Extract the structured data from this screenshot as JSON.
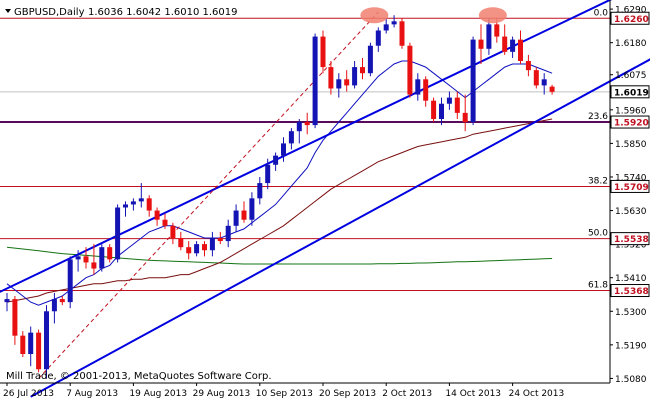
{
  "chart_data": {
    "type": "candlestick",
    "header": {
      "symbol_tf": "GBPUSD,Daily",
      "ohlc": "1.6036 1.6042 1.6010 1.6019"
    },
    "copyright": "Mill Trade, © 2001-2013, MetaQuotes Software Corp.",
    "ylim": [
      1.5065,
      1.631
    ],
    "y_ticks": [
      "1.6290",
      "1.6180",
      "1.6075",
      "1.5960",
      "1.5850",
      "1.5740",
      "1.5630",
      "1.5520",
      "1.5410",
      "1.5300",
      "1.5190",
      "1.5080"
    ],
    "x_ticks": [
      "26 Jul 2013",
      "7 Aug 2013",
      "19 Aug 2013",
      "29 Aug 2013",
      "10 Sep 2013",
      "20 Sep 2013",
      "2 Oct 2013",
      "14 Oct 2013",
      "24 Oct 2013"
    ],
    "x_tick_index": [
      0,
      8,
      16,
      24,
      32,
      40,
      48,
      56,
      64
    ],
    "candles": [
      [
        1.533,
        1.536,
        1.53,
        1.534
      ],
      [
        1.534,
        1.535,
        1.519,
        1.522
      ],
      [
        1.522,
        1.5235,
        1.515,
        1.516
      ],
      [
        1.516,
        1.525,
        1.512,
        1.523
      ],
      [
        1.523,
        1.524,
        1.51,
        1.511
      ],
      [
        1.511,
        1.532,
        1.508,
        1.53
      ],
      [
        1.53,
        1.536,
        1.526,
        1.534
      ],
      [
        1.534,
        1.535,
        1.532,
        1.533
      ],
      [
        1.533,
        1.548,
        1.531,
        1.547
      ],
      [
        1.547,
        1.55,
        1.543,
        1.548
      ],
      [
        1.548,
        1.551,
        1.544,
        1.546
      ],
      [
        1.546,
        1.552,
        1.542,
        1.544
      ],
      [
        1.544,
        1.552,
        1.543,
        1.551
      ],
      [
        1.551,
        1.552,
        1.546,
        1.547
      ],
      [
        1.547,
        1.565,
        1.546,
        1.564
      ],
      [
        1.564,
        1.566,
        1.561,
        1.565
      ],
      [
        1.565,
        1.567,
        1.563,
        1.566
      ],
      [
        1.566,
        1.572,
        1.564,
        1.567
      ],
      [
        1.567,
        1.568,
        1.561,
        1.563
      ],
      [
        1.563,
        1.564,
        1.558,
        1.56
      ],
      [
        1.56,
        1.562,
        1.557,
        1.558
      ],
      [
        1.558,
        1.559,
        1.552,
        1.554
      ],
      [
        1.554,
        1.556,
        1.55,
        1.551
      ],
      [
        1.551,
        1.553,
        1.547,
        1.549
      ],
      [
        1.549,
        1.553,
        1.548,
        1.552
      ],
      [
        1.552,
        1.553,
        1.548,
        1.55
      ],
      [
        1.55,
        1.556,
        1.548,
        1.554
      ],
      [
        1.554,
        1.556,
        1.552,
        1.553
      ],
      [
        1.553,
        1.56,
        1.551,
        1.558
      ],
      [
        1.558,
        1.565,
        1.556,
        1.563
      ],
      [
        1.563,
        1.566,
        1.559,
        1.56
      ],
      [
        1.56,
        1.569,
        1.558,
        1.567
      ],
      [
        1.567,
        1.574,
        1.565,
        1.572
      ],
      [
        1.572,
        1.58,
        1.57,
        1.578
      ],
      [
        1.578,
        1.582,
        1.576,
        1.581
      ],
      [
        1.581,
        1.587,
        1.579,
        1.585
      ],
      [
        1.585,
        1.59,
        1.583,
        1.589
      ],
      [
        1.589,
        1.593,
        1.585,
        1.592
      ],
      [
        1.592,
        1.595,
        1.588,
        1.591
      ],
      [
        1.591,
        1.621,
        1.59,
        1.62
      ],
      [
        1.62,
        1.622,
        1.608,
        1.61
      ],
      [
        1.61,
        1.612,
        1.601,
        1.603
      ],
      [
        1.603,
        1.608,
        1.6,
        1.606
      ],
      [
        1.606,
        1.609,
        1.602,
        1.604
      ],
      [
        1.604,
        1.612,
        1.603,
        1.61
      ],
      [
        1.61,
        1.613,
        1.606,
        1.608
      ],
      [
        1.608,
        1.618,
        1.607,
        1.617
      ],
      [
        1.617,
        1.623,
        1.615,
        1.622
      ],
      [
        1.622,
        1.626,
        1.621,
        1.624
      ],
      [
        1.624,
        1.627,
        1.623,
        1.625
      ],
      [
        1.625,
        1.626,
        1.616,
        1.617
      ],
      [
        1.617,
        1.618,
        1.6,
        1.601
      ],
      [
        1.601,
        1.608,
        1.599,
        1.606
      ],
      [
        1.606,
        1.607,
        1.597,
        1.599
      ],
      [
        1.599,
        1.6,
        1.592,
        1.593
      ],
      [
        1.593,
        1.6,
        1.591,
        1.598
      ],
      [
        1.598,
        1.602,
        1.596,
        1.6
      ],
      [
        1.6,
        1.602,
        1.593,
        1.595
      ],
      [
        1.595,
        1.601,
        1.589,
        1.592
      ],
      [
        1.592,
        1.62,
        1.591,
        1.619
      ],
      [
        1.619,
        1.624,
        1.611,
        1.616
      ],
      [
        1.616,
        1.626,
        1.614,
        1.624
      ],
      [
        1.624,
        1.626,
        1.618,
        1.62
      ],
      [
        1.62,
        1.624,
        1.614,
        1.615
      ],
      [
        1.615,
        1.62,
        1.613,
        1.619
      ],
      [
        1.619,
        1.622,
        1.611,
        1.612
      ],
      [
        1.612,
        1.614,
        1.607,
        1.609
      ],
      [
        1.609,
        1.61,
        1.603,
        1.604
      ],
      [
        1.604,
        1.608,
        1.601,
        1.606
      ],
      [
        1.6036,
        1.6042,
        1.601,
        1.6019
      ]
    ],
    "ma_fast": [
      1.539,
      1.537,
      1.535,
      1.533,
      1.532,
      1.533,
      1.534,
      1.535,
      1.537,
      1.539,
      1.541,
      1.542,
      1.544,
      1.545,
      1.548,
      1.55,
      1.552,
      1.554,
      1.556,
      1.557,
      1.558,
      1.558,
      1.557,
      1.556,
      1.555,
      1.554,
      1.554,
      1.554,
      1.555,
      1.556,
      1.557,
      1.559,
      1.561,
      1.563,
      1.565,
      1.568,
      1.571,
      1.574,
      1.577,
      1.582,
      1.586,
      1.589,
      1.592,
      1.595,
      1.598,
      1.601,
      1.604,
      1.607,
      1.609,
      1.611,
      1.612,
      1.612,
      1.611,
      1.61,
      1.608,
      1.606,
      1.604,
      1.602,
      1.6,
      1.602,
      1.604,
      1.606,
      1.608,
      1.61,
      1.611,
      1.611,
      1.611,
      1.61,
      1.609,
      1.608
    ],
    "ma_medium": [
      1.533,
      1.5335,
      1.534,
      1.5345,
      1.535,
      1.536,
      1.5365,
      1.537,
      1.5375,
      1.538,
      1.5385,
      1.539,
      1.539,
      1.5395,
      1.54,
      1.54,
      1.5405,
      1.5405,
      1.541,
      1.541,
      1.541,
      1.5415,
      1.542,
      1.542,
      1.543,
      1.544,
      1.545,
      1.546,
      1.5475,
      1.549,
      1.5505,
      1.552,
      1.5535,
      1.555,
      1.5565,
      1.558,
      1.56,
      1.562,
      1.564,
      1.566,
      1.568,
      1.57,
      1.5715,
      1.573,
      1.5745,
      1.576,
      1.5775,
      1.579,
      1.58,
      1.581,
      1.582,
      1.583,
      1.584,
      1.5845,
      1.585,
      1.5855,
      1.586,
      1.5865,
      1.587,
      1.588,
      1.5885,
      1.589,
      1.5895,
      1.59,
      1.5905,
      1.591,
      1.5915,
      1.592,
      1.5925,
      1.593
    ],
    "ma_slow": [
      1.551,
      1.5507,
      1.5504,
      1.5501,
      1.5498,
      1.5495,
      1.5492,
      1.5489,
      1.5487,
      1.5485,
      1.5483,
      1.5481,
      1.5479,
      1.5477,
      1.5475,
      1.5473,
      1.5471,
      1.5469,
      1.5467,
      1.5466,
      1.5465,
      1.5464,
      1.5463,
      1.5462,
      1.5461,
      1.546,
      1.5459,
      1.5458,
      1.5457,
      1.5456,
      1.5455,
      1.5455,
      1.5455,
      1.5455,
      1.5455,
      1.5455,
      1.5455,
      1.5455,
      1.5455,
      1.5455,
      1.5455,
      1.5455,
      1.5455,
      1.5455,
      1.5455,
      1.5455,
      1.5455,
      1.5456,
      1.5456,
      1.5456,
      1.5457,
      1.5457,
      1.5458,
      1.5458,
      1.5459,
      1.546,
      1.5461,
      1.5462,
      1.5462,
      1.5463,
      1.5464,
      1.5465,
      1.5466,
      1.5467,
      1.5468,
      1.5469,
      1.547,
      1.5471,
      1.5472,
      1.5473
    ],
    "fib_levels": [
      {
        "ratio": "0.0",
        "price": 1.626,
        "label": "1.6260"
      },
      {
        "ratio": "23.6",
        "price": 1.592,
        "label": "1.5920"
      },
      {
        "ratio": "38.2",
        "price": 1.5709,
        "label": "1.5709"
      },
      {
        "ratio": "50.0",
        "price": 1.5538,
        "label": "1.5538"
      },
      {
        "ratio": "61.8",
        "price": 1.5368,
        "label": "1.5368"
      }
    ],
    "current_price": {
      "price": 1.6019,
      "label": "1.6019"
    },
    "channel": {
      "upper": [
        [
          -2,
          1.535
        ],
        [
          86,
          1.644
        ]
      ],
      "lower": [
        [
          3,
          1.502
        ],
        [
          86,
          1.619
        ]
      ],
      "fib_swing": [
        [
          4,
          1.508
        ],
        [
          47,
          1.628
        ]
      ]
    },
    "tops": [
      {
        "index": 46.5,
        "price": 1.627
      },
      {
        "index": 61.5,
        "price": 1.627
      }
    ],
    "colors": {
      "bull": "#1414b4",
      "bear": "#e81010",
      "channel": "#0000e0",
      "fib": "#c01020",
      "ma_fast": "#1010c0",
      "ma_medium": "#7a0f0f",
      "ma_slow": "#127312",
      "ellipse": "#f08070",
      "grid": "#000000"
    }
  }
}
